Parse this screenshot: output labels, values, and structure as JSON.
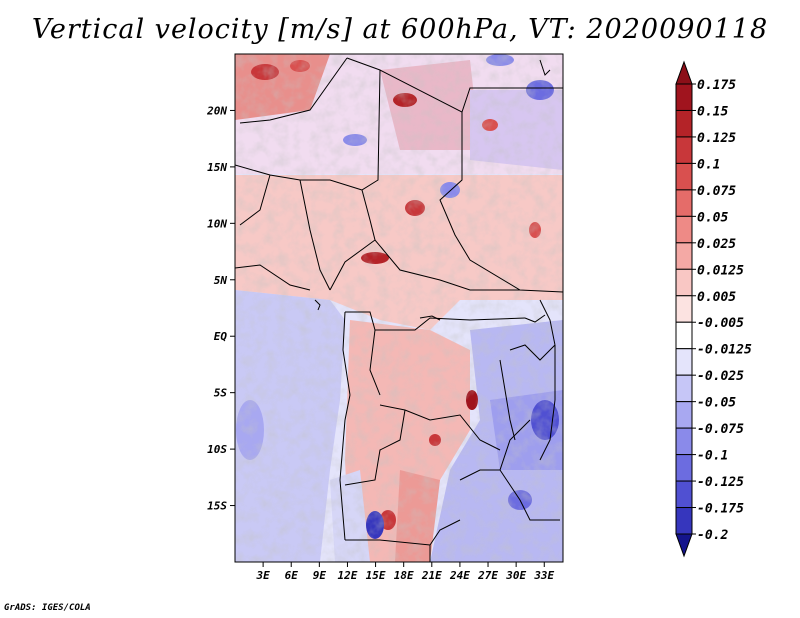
{
  "title": "Vertical velocity [m/s] at 600hPa, VT: 2020090118",
  "footer": "GrADS: IGES/COLA",
  "map": {
    "lon_range": [
      0,
      35
    ],
    "lat_range": [
      -20,
      25
    ],
    "lat_ticks": [
      {
        "value": 20,
        "label": "20N"
      },
      {
        "value": 15,
        "label": "15N"
      },
      {
        "value": 10,
        "label": "10N"
      },
      {
        "value": 5,
        "label": "5N"
      },
      {
        "value": 0,
        "label": "EQ"
      },
      {
        "value": -5,
        "label": "5S"
      },
      {
        "value": -10,
        "label": "10S"
      },
      {
        "value": -15,
        "label": "15S"
      }
    ],
    "lon_ticks": [
      {
        "value": 3,
        "label": "3E"
      },
      {
        "value": 6,
        "label": "6E"
      },
      {
        "value": 9,
        "label": "9E"
      },
      {
        "value": 12,
        "label": "12E"
      },
      {
        "value": 15,
        "label": "15E"
      },
      {
        "value": 18,
        "label": "18E"
      },
      {
        "value": 21,
        "label": "21E"
      },
      {
        "value": 24,
        "label": "24E"
      },
      {
        "value": 27,
        "label": "27E"
      },
      {
        "value": 30,
        "label": "30E"
      },
      {
        "value": 33,
        "label": "33E"
      }
    ]
  },
  "colorbar": {
    "levels": [
      {
        "label": "0.175",
        "color": "#a0141e"
      },
      {
        "label": "0.15",
        "color": "#b42328"
      },
      {
        "label": "0.125",
        "color": "#c8373a"
      },
      {
        "label": "0.1",
        "color": "#d9504f"
      },
      {
        "label": "0.075",
        "color": "#e56c69"
      },
      {
        "label": "0.05",
        "color": "#ee8a86"
      },
      {
        "label": "0.025",
        "color": "#f4a9a5"
      },
      {
        "label": "0.0125",
        "color": "#f9c7c4"
      },
      {
        "label": "0.005",
        "color": "#fce3e1"
      },
      {
        "label": "-0.005",
        "color": "#ffffff"
      },
      {
        "label": "-0.0125",
        "color": "#e4e4fb"
      },
      {
        "label": "-0.025",
        "color": "#c6c6f7"
      },
      {
        "label": "-0.05",
        "color": "#a8a8f1"
      },
      {
        "label": "-0.075",
        "color": "#8a8aea"
      },
      {
        "label": "-0.1",
        "color": "#6c6ce0"
      },
      {
        "label": "-0.125",
        "color": "#5050d2"
      },
      {
        "label": "-0.175",
        "color": "#3636bd"
      },
      {
        "label": "-0.2",
        "color": "#1f1fa3"
      }
    ],
    "top_color": "#8c0f18",
    "bottom_color": "#14148c"
  }
}
